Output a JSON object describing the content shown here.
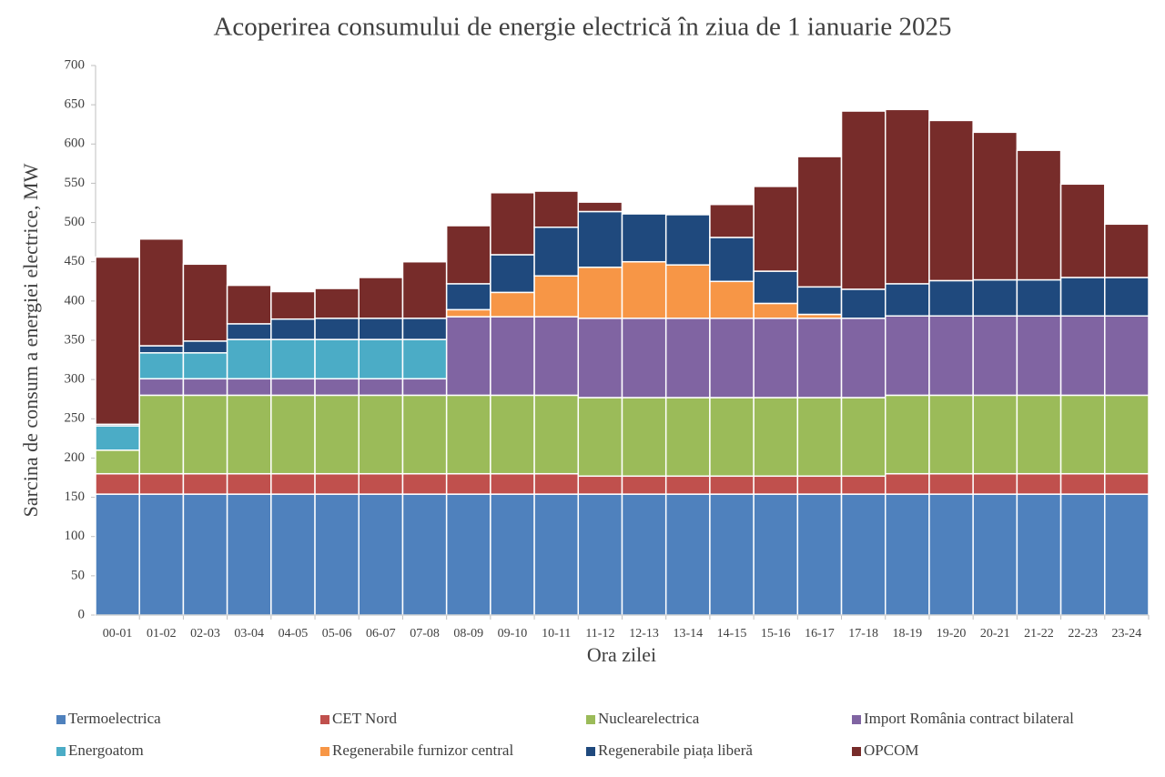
{
  "chart_data": {
    "type": "stacked_bar",
    "title": "Acoperirea consumului de energie electrică în ziua de 1 ianuarie 2025",
    "x_label": "Ora zilei",
    "y_label": "Sarcina de consum a energiei electrice, MW",
    "categories": [
      "00-01",
      "01-02",
      "02-03",
      "03-04",
      "04-05",
      "05-06",
      "06-07",
      "07-08",
      "08-09",
      "09-10",
      "10-11",
      "11-12",
      "12-13",
      "13-14",
      "14-15",
      "15-16",
      "16-17",
      "17-18",
      "18-19",
      "19-20",
      "20-21",
      "21-22",
      "22-23",
      "23-24"
    ],
    "series": [
      {
        "name": "Termoelectrica",
        "color": "#4f81bd",
        "values": [
          154,
          154,
          154,
          154,
          154,
          154,
          154,
          154,
          154,
          154,
          154,
          154,
          154,
          154,
          154,
          154,
          154,
          154,
          154,
          154,
          154,
          154,
          154,
          154
        ]
      },
      {
        "name": "CET Nord",
        "color": "#c0504d",
        "values": [
          26,
          26,
          26,
          26,
          26,
          26,
          26,
          26,
          26,
          26,
          26,
          23,
          23,
          23,
          23,
          23,
          23,
          23,
          26,
          26,
          26,
          26,
          26,
          26
        ]
      },
      {
        "name": "Nuclearelectrica",
        "color": "#9bbb59",
        "values": [
          30,
          100,
          100,
          100,
          100,
          100,
          100,
          100,
          100,
          100,
          100,
          100,
          100,
          100,
          100,
          100,
          100,
          100,
          100,
          100,
          100,
          100,
          100,
          100
        ]
      },
      {
        "name": "Import România contract bilateral",
        "color": "#8064a2",
        "values": [
          0,
          21,
          21,
          21,
          21,
          21,
          21,
          21,
          100,
          100,
          100,
          101,
          101,
          101,
          101,
          101,
          101,
          101,
          101,
          101,
          101,
          101,
          101,
          101
        ]
      },
      {
        "name": "Energoatom",
        "color": "#4bacc6",
        "values": [
          31,
          33,
          33,
          50,
          50,
          50,
          50,
          50,
          0,
          0,
          0,
          0,
          0,
          0,
          0,
          0,
          0,
          0,
          0,
          0,
          0,
          0,
          0,
          0
        ]
      },
      {
        "name": "Regenerabile furnizor central",
        "color": "#f79646",
        "values": [
          0,
          0,
          0,
          0,
          0,
          0,
          0,
          0,
          9,
          31,
          52,
          65,
          72,
          68,
          47,
          19,
          5,
          0,
          0,
          0,
          0,
          0,
          0,
          0
        ]
      },
      {
        "name": "Regenerabile piața liberă",
        "color": "#1f497d",
        "values": [
          2,
          9,
          15,
          20,
          26,
          27,
          27,
          27,
          33,
          48,
          62,
          71,
          61,
          64,
          56,
          41,
          35,
          37,
          41,
          45,
          46,
          46,
          49,
          49
        ]
      },
      {
        "name": "OPCOM",
        "color": "#772c2a",
        "values": [
          213,
          136,
          98,
          49,
          35,
          38,
          52,
          72,
          74,
          79,
          46,
          12,
          0,
          0,
          42,
          108,
          166,
          227,
          222,
          204,
          188,
          165,
          119,
          68
        ]
      }
    ],
    "ylim": [
      0,
      700
    ],
    "yticks": [
      0,
      50,
      100,
      150,
      200,
      250,
      300,
      350,
      400,
      450,
      500,
      550,
      600,
      650,
      700
    ]
  }
}
